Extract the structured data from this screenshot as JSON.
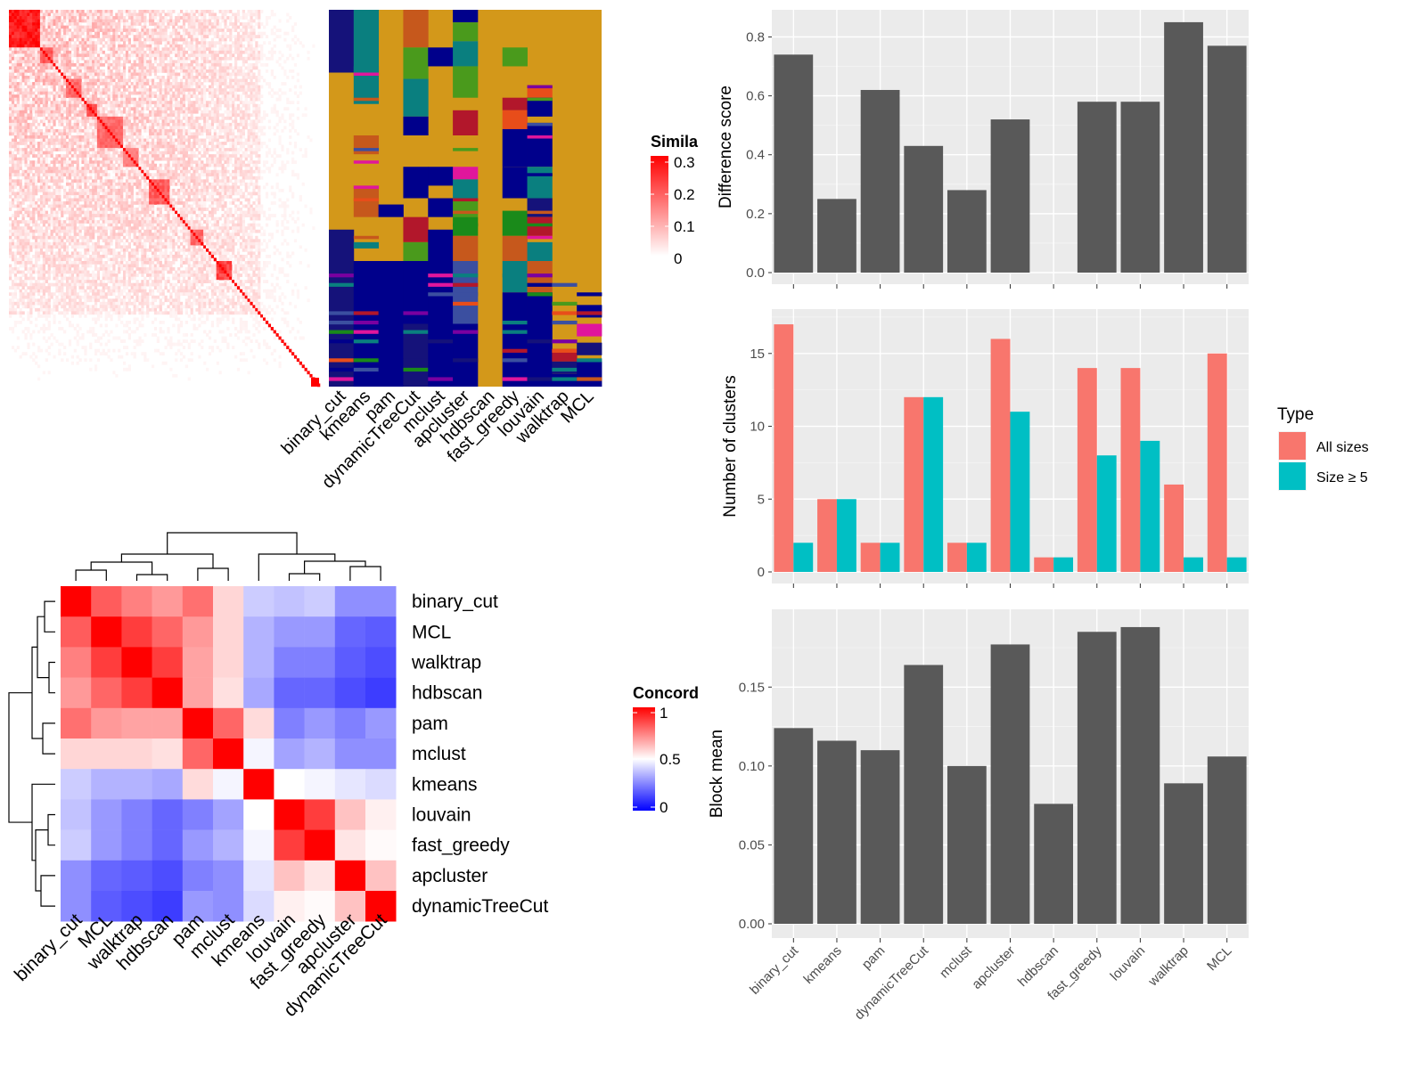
{
  "similarity_legend": {
    "title": "Simila",
    "ticks": [
      "0.3",
      "0.2",
      "0.1",
      "0"
    ]
  },
  "concordance_legend": {
    "title": "Concord",
    "ticks": [
      "1",
      "0.5",
      "0"
    ]
  },
  "clustering_methods": [
    "binary_cut",
    "kmeans",
    "pam",
    "dynamicTreeCut",
    "mclust",
    "apcluster",
    "hdbscan",
    "fast_greedy",
    "louvain",
    "walktrap",
    "MCL"
  ],
  "chart_data": [
    {
      "type": "heatmap",
      "panel": "similarity-matrix",
      "legend_title": "Simila",
      "color_range": [
        0,
        0.3
      ],
      "legend_ticks": [
        0,
        0.1,
        0.2,
        0.3
      ],
      "colors": {
        "low": "#ffffff",
        "high": "#ff0000"
      }
    },
    {
      "type": "heatmap",
      "panel": "cluster-membership",
      "columns": [
        "binary_cut",
        "kmeans",
        "pam",
        "dynamicTreeCut",
        "mclust",
        "apcluster",
        "hdbscan",
        "fast_greedy",
        "louvain",
        "walktrap",
        "MCL"
      ]
    },
    {
      "type": "bar",
      "panel": "difference-score",
      "categories": [
        "binary_cut",
        "kmeans",
        "pam",
        "dynamicTreeCut",
        "mclust",
        "apcluster",
        "hdbscan",
        "fast_greedy",
        "louvain",
        "walktrap",
        "MCL"
      ],
      "values": [
        0.74,
        0.25,
        0.62,
        0.43,
        0.28,
        0.52,
        0,
        0.58,
        0.58,
        0.85,
        0.77
      ],
      "ylabel": "Difference score",
      "ylim": [
        0,
        0.88
      ],
      "yticks": [
        0.0,
        0.2,
        0.4,
        0.6,
        0.8
      ],
      "ytick_labels": [
        "0.0",
        "0.2",
        "0.4",
        "0.6",
        "0.8"
      ],
      "bar_color": "#595959",
      "grid": true
    },
    {
      "type": "bar",
      "panel": "number-of-clusters",
      "categories": [
        "binary_cut",
        "kmeans",
        "pam",
        "dynamicTreeCut",
        "mclust",
        "apcluster",
        "hdbscan",
        "fast_greedy",
        "louvain",
        "walktrap",
        "MCL"
      ],
      "series": [
        {
          "name": "All sizes",
          "values": [
            17,
            5,
            2,
            12,
            2,
            16,
            1,
            14,
            14,
            6,
            15
          ],
          "color": "#f8766d"
        },
        {
          "name": "Size ≥ 5",
          "values": [
            2,
            5,
            2,
            12,
            2,
            11,
            1,
            8,
            9,
            1,
            1
          ],
          "color": "#00bfc4"
        }
      ],
      "ylabel": "Number of clusters",
      "ylim": [
        0,
        17.8
      ],
      "yticks": [
        0,
        5,
        10,
        15
      ],
      "ytick_labels": [
        "0",
        "5",
        "10",
        "15"
      ],
      "legend_title": "Type",
      "legend_position": "right",
      "grid": true
    },
    {
      "type": "bar",
      "panel": "block-mean",
      "categories": [
        "binary_cut",
        "kmeans",
        "pam",
        "dynamicTreeCut",
        "mclust",
        "apcluster",
        "hdbscan",
        "fast_greedy",
        "louvain",
        "walktrap",
        "MCL"
      ],
      "values": [
        0.124,
        0.116,
        0.11,
        0.164,
        0.1,
        0.177,
        0.076,
        0.185,
        0.188,
        0.089,
        0.106
      ],
      "ylabel": "Block mean",
      "ylim": [
        0,
        0.197
      ],
      "yticks": [
        0.0,
        0.05,
        0.1,
        0.15
      ],
      "ytick_labels": [
        "0.00",
        "0.05",
        "0.10",
        "0.15"
      ],
      "bar_color": "#595959",
      "grid": true
    },
    {
      "type": "heatmap",
      "panel": "concordance",
      "order": [
        "binary_cut",
        "MCL",
        "walktrap",
        "hdbscan",
        "pam",
        "mclust",
        "kmeans",
        "louvain",
        "fast_greedy",
        "apcluster",
        "dynamicTreeCut"
      ],
      "legend_title": "Concord",
      "color_range": [
        0,
        1
      ],
      "legend_ticks": [
        0,
        0.5,
        1
      ],
      "colors": {
        "low": "#0000ff",
        "mid": "#ffffff",
        "high": "#ff0000"
      },
      "values": [
        [
          1.0,
          0.82,
          0.75,
          0.7,
          0.78,
          0.58,
          0.4,
          0.38,
          0.4,
          0.28,
          0.28
        ],
        [
          0.82,
          1.0,
          0.88,
          0.8,
          0.7,
          0.58,
          0.35,
          0.3,
          0.3,
          0.2,
          0.18
        ],
        [
          0.75,
          0.88,
          1.0,
          0.88,
          0.68,
          0.58,
          0.35,
          0.25,
          0.25,
          0.18,
          0.15
        ],
        [
          0.7,
          0.8,
          0.88,
          1.0,
          0.68,
          0.56,
          0.33,
          0.2,
          0.2,
          0.15,
          0.12
        ],
        [
          0.78,
          0.7,
          0.68,
          0.68,
          1.0,
          0.8,
          0.57,
          0.25,
          0.3,
          0.25,
          0.3
        ],
        [
          0.58,
          0.58,
          0.58,
          0.56,
          0.8,
          1.0,
          0.48,
          0.32,
          0.35,
          0.28,
          0.28
        ],
        [
          0.4,
          0.35,
          0.35,
          0.33,
          0.57,
          0.48,
          1.0,
          0.5,
          0.48,
          0.45,
          0.43
        ],
        [
          0.38,
          0.3,
          0.25,
          0.2,
          0.25,
          0.32,
          0.5,
          1.0,
          0.88,
          0.62,
          0.53
        ],
        [
          0.4,
          0.3,
          0.25,
          0.2,
          0.3,
          0.35,
          0.48,
          0.88,
          1.0,
          0.55,
          0.51
        ],
        [
          0.28,
          0.2,
          0.18,
          0.15,
          0.25,
          0.28,
          0.45,
          0.62,
          0.55,
          1.0,
          0.62
        ],
        [
          0.28,
          0.18,
          0.15,
          0.12,
          0.3,
          0.28,
          0.43,
          0.53,
          0.51,
          0.62,
          1.0
        ]
      ]
    }
  ]
}
